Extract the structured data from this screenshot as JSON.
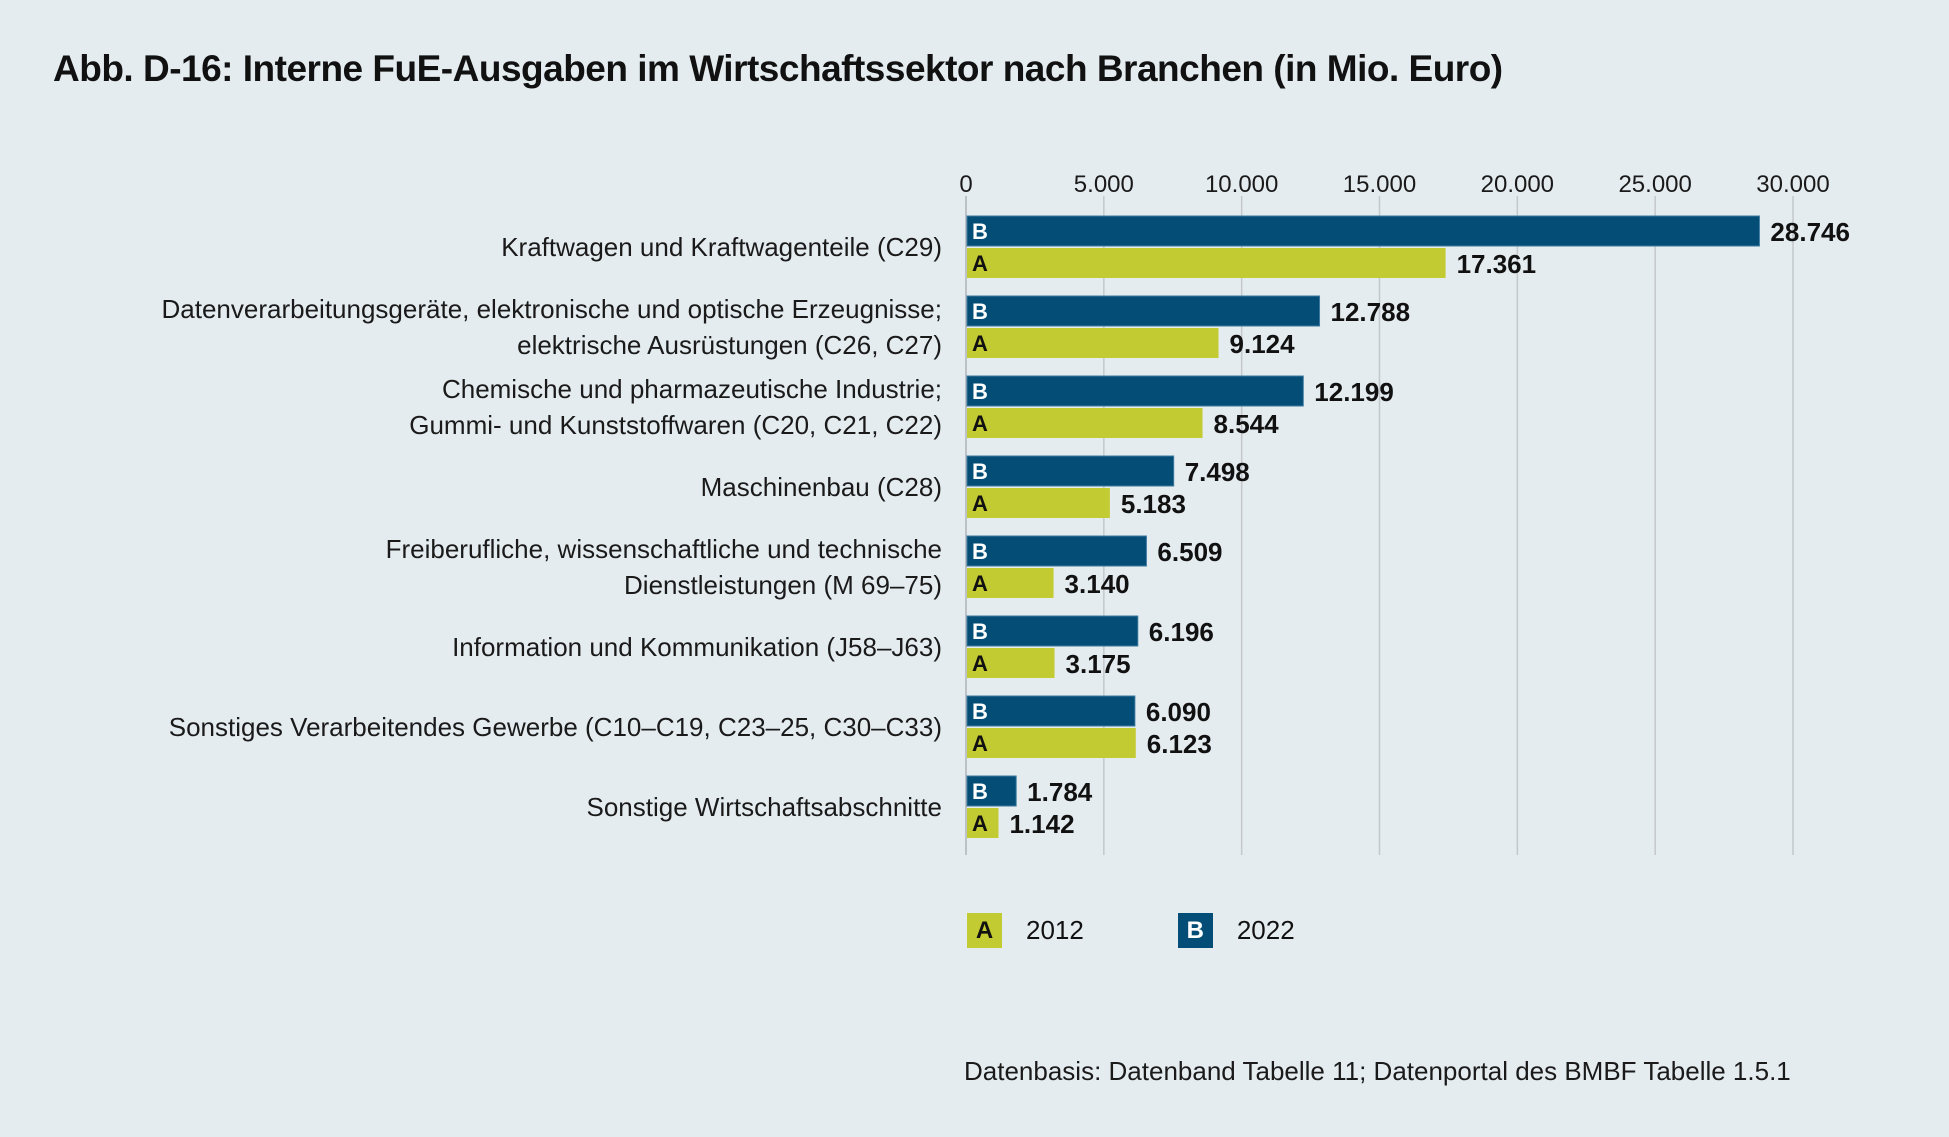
{
  "title": "Abb. D-16: Interne FuE-Ausgaben im Wirtschaftssektor nach Branchen (in Mio. Euro)",
  "source": "Datenbasis: Datenband Tabelle 11; Datenportal des BMBF Tabelle 1.5.1",
  "colors": {
    "series_2012": "#c3cb32",
    "series_2022": "#034d76",
    "grid": "#c4c8cc",
    "background": "#e5ecf0"
  },
  "legend": [
    {
      "key": "A",
      "label": "2012"
    },
    {
      "key": "B",
      "label": "2022"
    }
  ],
  "chart_data": {
    "type": "bar",
    "orientation": "horizontal",
    "title": "Abb. D-16: Interne FuE-Ausgaben im Wirtschaftssektor nach Branchen (in Mio. Euro)",
    "xlabel": "",
    "ylabel": "",
    "xlim": [
      0,
      30000
    ],
    "x_ticks": [
      0,
      5000,
      10000,
      15000,
      20000,
      25000,
      30000
    ],
    "x_tick_labels": [
      "0",
      "5.000",
      "10.000",
      "15.000",
      "20.000",
      "25.000",
      "30.000"
    ],
    "x_axis_position": "top",
    "grid": true,
    "legend_position": "bottom",
    "categories": [
      [
        "Kraftwagen und Kraftwagenteile (C29)"
      ],
      [
        "Datenverarbeitungsgeräte, elektronische und optische Erzeugnisse;",
        "elektrische Ausrüstungen (C26, C27)"
      ],
      [
        "Chemische und pharmazeutische Industrie;",
        "Gummi- und Kunststoffwaren (C20, C21, C22)"
      ],
      [
        "Maschinenbau (C28)"
      ],
      [
        "Freiberufliche, wissenschaftliche und technische",
        "Dienstleistungen (M 69–75)"
      ],
      [
        "Information und Kommunikation (J58–J63)"
      ],
      [
        "Sonstiges Verarbeitendes Gewerbe (C10–C19, C23–25, C30–C33)"
      ],
      [
        "Sonstige Wirtschaftsabschnitte"
      ]
    ],
    "series": [
      {
        "name": "2022",
        "key": "B",
        "values": [
          28746,
          12788,
          12199,
          7498,
          6509,
          6196,
          6090,
          1784
        ],
        "labels": [
          "28.746",
          "12.788",
          "12.199",
          "7.498",
          "6.509",
          "6.196",
          "6.090",
          "1.784"
        ]
      },
      {
        "name": "2012",
        "key": "A",
        "values": [
          17361,
          9124,
          8544,
          5183,
          3140,
          3175,
          6123,
          1142
        ],
        "labels": [
          "17.361",
          "9.124",
          "8.544",
          "5.183",
          "3.140",
          "3.175",
          "6.123",
          "1.142"
        ]
      }
    ]
  }
}
